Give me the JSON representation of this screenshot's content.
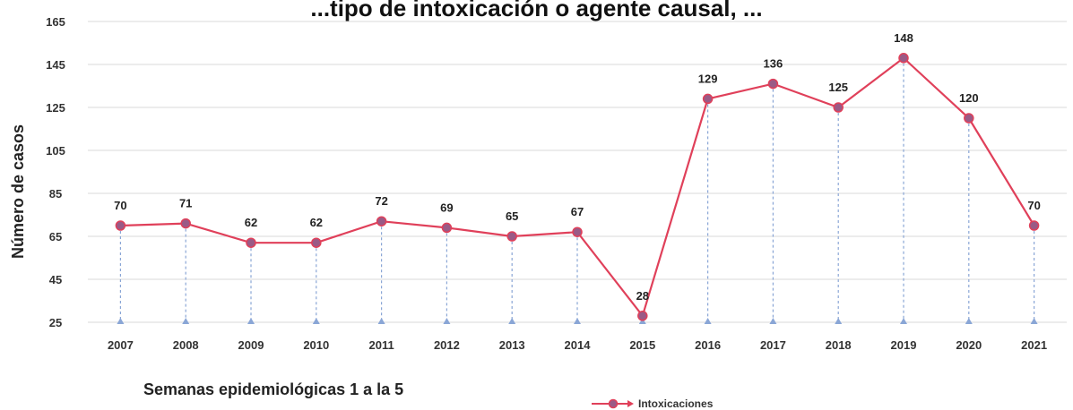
{
  "chart_data": {
    "type": "line",
    "title": "...tipo de intoxicación o agente causal, ...",
    "subtitle": "Semanas epidemiológicas 1 a la 5",
    "ylabel": "Número de casos",
    "xlabel": "",
    "ylim": [
      25,
      165
    ],
    "yticks": [
      25,
      45,
      65,
      85,
      105,
      125,
      145,
      165
    ],
    "grid": true,
    "legend_position": "bottom",
    "categories": [
      "2007",
      "2008",
      "2009",
      "2010",
      "2011",
      "2012",
      "2013",
      "2014",
      "2015",
      "2016",
      "2017",
      "2018",
      "2019",
      "2020",
      "2021"
    ],
    "series": [
      {
        "name": "Intoxicaciones",
        "values": [
          70,
          71,
          62,
          62,
          72,
          69,
          65,
          67,
          28,
          129,
          136,
          125,
          148,
          120,
          70
        ]
      }
    ],
    "colors": {
      "line": "#e0405a",
      "marker_fill": "#9a5a86",
      "marker_stroke": "#e0405a",
      "dropline": "#8aa6d6",
      "grid": "#d9d9d9"
    }
  }
}
